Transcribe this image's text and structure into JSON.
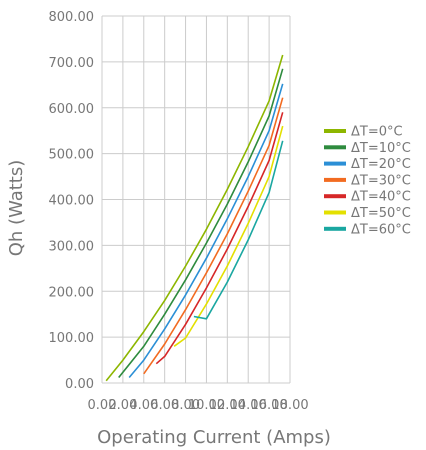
{
  "chart_data": {
    "type": "line",
    "title": "",
    "xlabel": "Operating Current (Amps)",
    "ylabel": "Qh (Watts)",
    "xlim": [
      0,
      18
    ],
    "ylim": [
      0,
      800
    ],
    "x_ticks": [
      0,
      2,
      4,
      6,
      8,
      10,
      12,
      14,
      16,
      18
    ],
    "x_tick_labels": [
      "0.00",
      "2.00",
      "4.00",
      "6.00",
      "8.00",
      "10.00",
      "12.00",
      "14.00",
      "16.00",
      "18.00"
    ],
    "y_ticks": [
      0,
      100,
      200,
      300,
      400,
      500,
      600,
      700,
      800
    ],
    "y_tick_labels": [
      "0.00",
      "100.00",
      "200.00",
      "300.00",
      "400.00",
      "500.00",
      "600.00",
      "700.00",
      "800.00"
    ],
    "grid": true,
    "legend_position": "right",
    "series": [
      {
        "name": "ΔT=0°C",
        "color": "#8db600",
        "x": [
          0.4,
          2,
          4,
          6,
          8,
          10,
          12,
          14,
          16,
          17.3
        ],
        "y": [
          5,
          50,
          112,
          180,
          255,
          335,
          422,
          515,
          615,
          715
        ]
      },
      {
        "name": "ΔT=10°C",
        "color": "#2e8b3e",
        "x": [
          1.6,
          4,
          6,
          8,
          10,
          12,
          14,
          16,
          17.3
        ],
        "y": [
          12,
          80,
          150,
          225,
          305,
          390,
          482,
          582,
          685
        ]
      },
      {
        "name": "ΔT=20°C",
        "color": "#2b8fd6",
        "x": [
          2.6,
          4,
          6,
          8,
          10,
          12,
          14,
          16,
          17.3
        ],
        "y": [
          12,
          50,
          118,
          192,
          272,
          358,
          450,
          550,
          652
        ]
      },
      {
        "name": "ΔT=30°C",
        "color": "#f26b21",
        "x": [
          4.0,
          6,
          8,
          10,
          12,
          14,
          16,
          17.3
        ],
        "y": [
          20,
          85,
          160,
          240,
          325,
          418,
          518,
          622
        ]
      },
      {
        "name": "ΔT=40°C",
        "color": "#d62728",
        "x": [
          5.2,
          6,
          8,
          10,
          12,
          14,
          16,
          17.3
        ],
        "y": [
          42,
          58,
          128,
          207,
          292,
          385,
          485,
          590
        ]
      },
      {
        "name": "ΔT=50°C",
        "color": "#e3e000",
        "x": [
          6.9,
          8,
          10,
          12,
          14,
          16,
          17.3
        ],
        "y": [
          80,
          98,
          172,
          255,
          348,
          450,
          560
        ]
      },
      {
        "name": "ΔT=60°C",
        "color": "#1aa7a1",
        "x": [
          8.8,
          10,
          12,
          14,
          16,
          17.3
        ],
        "y": [
          145,
          140,
          220,
          312,
          415,
          528
        ]
      }
    ]
  }
}
